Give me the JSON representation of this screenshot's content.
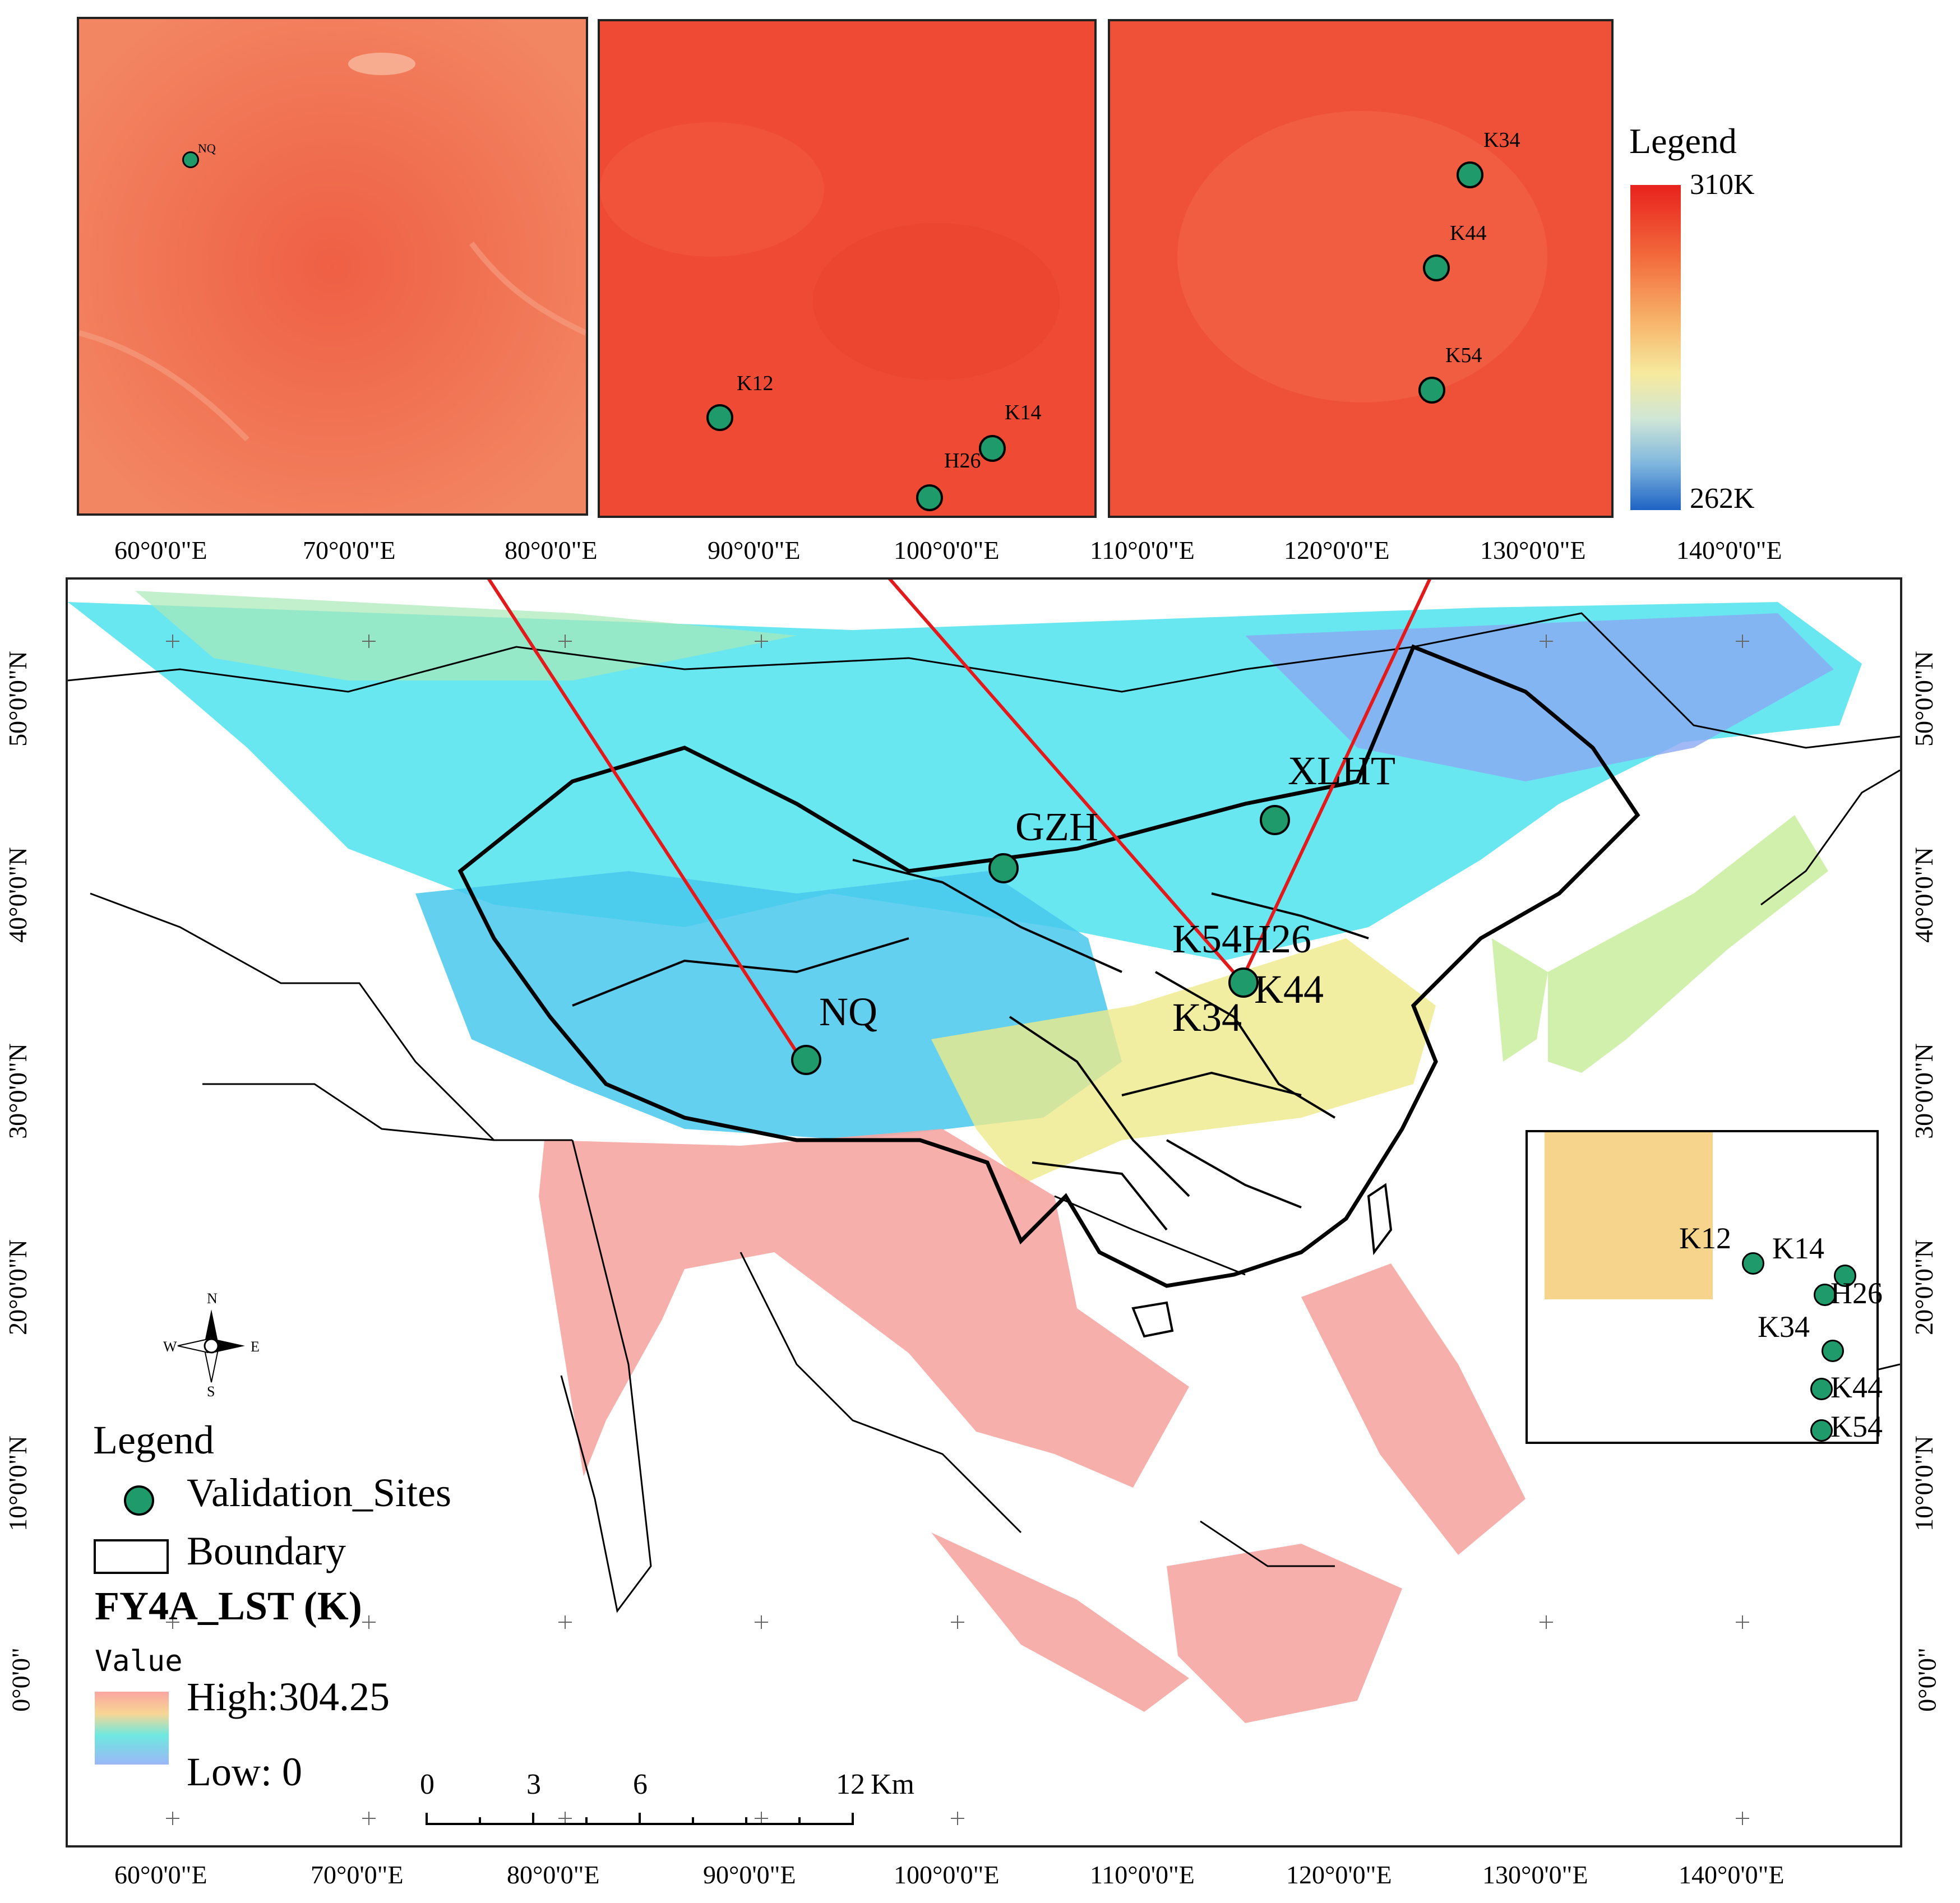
{
  "top_insets": {
    "nq_panel": {
      "sites": [
        "NQ"
      ]
    },
    "henan_panel": {
      "sites": [
        "K12",
        "K14",
        "H26"
      ]
    },
    "east_panel": {
      "sites": [
        "K34",
        "K44",
        "K54"
      ]
    }
  },
  "inset_legend": {
    "title": "Legend",
    "max": "310K",
    "min": "262K"
  },
  "top_axis_labels": [
    "60°0'0\"E",
    "70°0'0\"E",
    "80°0'0\"E",
    "90°0'0\"E",
    "100°0'0\"E",
    "110°0'0\"E",
    "120°0'0\"E",
    "130°0'0\"E",
    "140°0'0\"E"
  ],
  "bottom_axis_labels": [
    "60°0'0\"E",
    "70°0'0\"E",
    "80°0'0\"E",
    "90°0'0\"E",
    "100°0'0\"E",
    "110°0'0\"E",
    "120°0'0\"E",
    "130°0'0\"E",
    "140°0'0\"E"
  ],
  "lat_labels": [
    "50°0'0\"N",
    "40°0'0\"N",
    "30°0'0\"N",
    "20°0'0\"N",
    "10°0'0\"N",
    "0°0'0\""
  ],
  "main_map": {
    "sites": [
      "XLHT",
      "GZH",
      "K54H26",
      "K44",
      "K34",
      "NQ"
    ],
    "compass": {
      "n": "N",
      "s": "S",
      "e": "E",
      "w": "W"
    }
  },
  "right_inset": {
    "sites": [
      "K12",
      "K14",
      "H26",
      "K34",
      "K44",
      "K54"
    ]
  },
  "legend": {
    "title": "Legend",
    "sites_label": "Validation_Sites",
    "boundary_label": "Boundary",
    "layer_title": "FY4A_LST (K)",
    "value_label": "Value",
    "high_label": "High:304.25",
    "low_label": "Low: 0"
  },
  "scale_bar": {
    "ticks": [
      "0",
      "3",
      "6",
      "12"
    ],
    "unit": "Km"
  },
  "colors": {
    "site_fill": "#1f9a6b",
    "arrow": "#e31a1c",
    "hot_red": "#f04a35",
    "cold_blue": "#3aa0f0",
    "cyan": "#4ee6f2",
    "pink": "#f6a2a0",
    "yellow": "#f4ea8a"
  }
}
